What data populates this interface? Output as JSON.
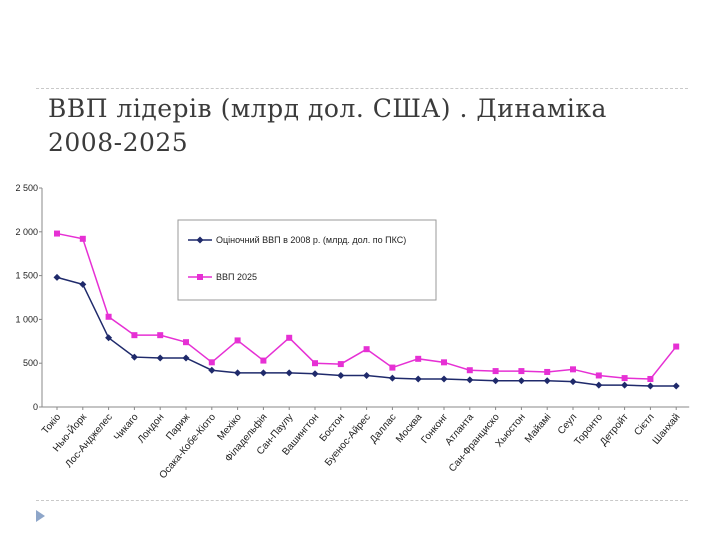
{
  "slide": {
    "title_line1": "ВВП лідерів (млрд дол. США) . Динаміка",
    "title_line2": "2008-2025"
  },
  "colors": {
    "series1": "#1f2a6b",
    "series2": "#e630d4",
    "axis": "#888888",
    "text": "#3b3b3b"
  },
  "icons": {
    "bullet": "triangle-bullet-icon"
  },
  "chart_data": {
    "type": "line",
    "title": "",
    "xlabel": "",
    "ylabel": "",
    "ylim": [
      0,
      2500
    ],
    "yticks": [
      0,
      500,
      1000,
      1500,
      2000,
      2500
    ],
    "ytick_labels": [
      "0",
      "500",
      "1 000",
      "1 500",
      "2 000",
      "2 500"
    ],
    "grid": false,
    "legend_position": "top-center",
    "categories": [
      "Токіо",
      "Нью-Йорк",
      "Лос-Анджелес",
      "Чикаго",
      "Лондон",
      "Париж",
      "Осака-Кобе-Кіото",
      "Мехіко",
      "Філадельфія",
      "Сан-Паулу",
      "Вашингтон",
      "Бостон",
      "Буенос-Айрес",
      "Даллас",
      "Москва",
      "Гонконг",
      "Атланта",
      "Сан-Франциско",
      "Хьюстон",
      "Майамі",
      "Сеул",
      "Торонто",
      "Детройт",
      "Сієтл",
      "Шанхай"
    ],
    "series": [
      {
        "name": "Оціночний ВВП в 2008 р. (млрд. дол. по ПКС)",
        "marker": "diamond",
        "values": [
          1480,
          1400,
          790,
          570,
          560,
          560,
          420,
          390,
          390,
          390,
          380,
          360,
          360,
          330,
          320,
          320,
          310,
          300,
          300,
          300,
          290,
          250,
          250,
          240,
          240
        ]
      },
      {
        "name": "ВВП 2025",
        "marker": "square",
        "values": [
          1980,
          1920,
          1030,
          820,
          820,
          740,
          510,
          760,
          530,
          790,
          500,
          490,
          660,
          450,
          550,
          510,
          420,
          410,
          410,
          400,
          430,
          360,
          330,
          320,
          690
        ]
      }
    ]
  }
}
